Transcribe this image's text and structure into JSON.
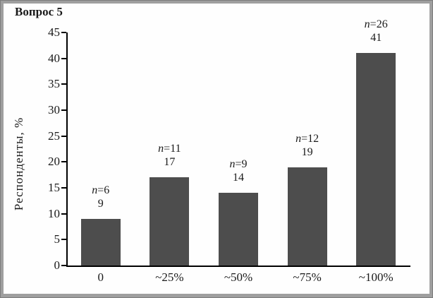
{
  "window": {
    "frame_color": "#9f9f9f",
    "paper_color": "#fefefe"
  },
  "title": "Вопрос 5",
  "chart_data": {
    "type": "bar",
    "title": "Вопрос 5",
    "ylabel": "Респонденты, %",
    "xlabel": "",
    "categories": [
      "0",
      "~25%",
      "~50%",
      "~75%",
      "~100%"
    ],
    "values": [
      9,
      17,
      14,
      19,
      41
    ],
    "counts": [
      6,
      11,
      9,
      12,
      26
    ],
    "bar_labels": [
      {
        "line1": "n=6",
        "line2": "9"
      },
      {
        "line1": "n=11",
        "line2": "17"
      },
      {
        "line1": "n=9",
        "line2": "14"
      },
      {
        "line1": "n=12",
        "line2": "19"
      },
      {
        "line1": "n=26",
        "line2": "41"
      }
    ],
    "ylim": [
      0,
      45
    ],
    "ytick_step": 5,
    "yticks": [
      "0",
      "5",
      "10",
      "15",
      "20",
      "25",
      "30",
      "35",
      "40",
      "45"
    ],
    "bar_color": "#4d4d4d",
    "axis_color": "#000000",
    "text_color": "#1a1a1a",
    "grid": false,
    "legend": null
  }
}
